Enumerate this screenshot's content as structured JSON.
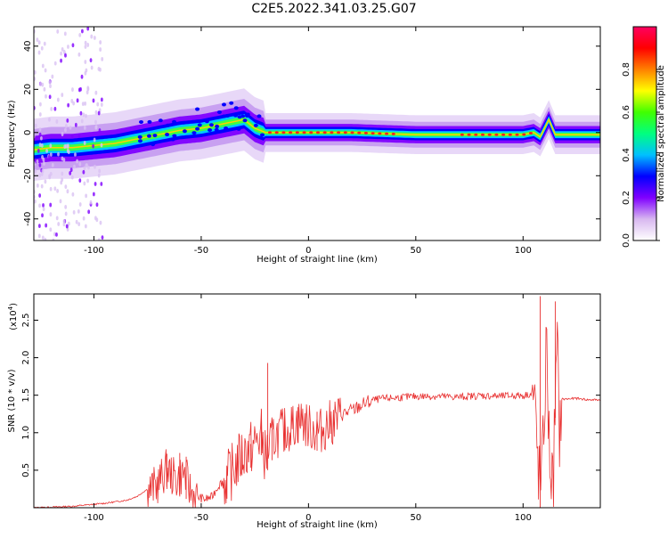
{
  "title": "C2E5.2022.341.03.25.G07",
  "chart_data": [
    {
      "type": "heatmap",
      "xlabel": "Height of straight line (km)",
      "ylabel": "Frequency (Hz)",
      "xlim": [
        -128,
        136
      ],
      "ylim": [
        -50,
        49
      ],
      "xticks": [
        -100,
        -50,
        0,
        50,
        100
      ],
      "yticks": [
        -40,
        -20,
        0,
        20,
        40
      ],
      "colorbar": {
        "label": "Normalized spectral amplitude",
        "range": [
          0.0,
          1.0
        ],
        "ticks": [
          "0.0",
          "0.2",
          "0.4",
          "0.6",
          "0.8"
        ],
        "tick_values": [
          0.0,
          0.2,
          0.4,
          0.6,
          0.8
        ],
        "colors": [
          "#ffffff",
          "#d8b8f0",
          "#8000ff",
          "#0000ff",
          "#00c0ff",
          "#00ff80",
          "#40ff00",
          "#ffff00",
          "#ff8000",
          "#ff0000",
          "#ff0060"
        ]
      },
      "ridge": {
        "x": [
          -128,
          -120,
          -110,
          -100,
          -90,
          -80,
          -70,
          -60,
          -50,
          -40,
          -30,
          -25,
          -20,
          -10,
          0,
          20,
          50,
          80,
          100,
          105,
          108,
          110,
          112,
          115,
          136
        ],
        "y": [
          -8,
          -7,
          -7,
          -6,
          -5,
          -3,
          -1,
          1,
          2,
          4,
          6,
          2,
          0,
          0,
          0,
          0,
          -1,
          -1,
          -1,
          0,
          -2,
          2,
          6,
          -1,
          -1
        ]
      }
    },
    {
      "type": "line",
      "xlabel": "Height of straight line (km)",
      "ylabel": "SNR (10 * v/v)",
      "multiplier": "(x10",
      "multiplier_exp": "4",
      "multiplier_close": ")",
      "xlim": [
        -128,
        136
      ],
      "ylim": [
        0,
        2.85
      ],
      "xticks": [
        -100,
        -50,
        0,
        50,
        100
      ],
      "yticks": [
        "0.5",
        "1.0",
        "1.5",
        "2.0",
        "2.5"
      ],
      "ytick_values": [
        0.5,
        1.0,
        1.5,
        2.0,
        2.5
      ],
      "color": "#e83030",
      "series": [
        {
          "x": [
            -128,
            -110,
            -95,
            -85,
            -80,
            -75,
            -70,
            -66,
            -62,
            -58,
            -55,
            -52,
            -48,
            -45,
            -42,
            -38,
            -35,
            -32,
            -29,
            -26,
            -22,
            -20,
            -18,
            -15,
            -12,
            -9,
            -6,
            -3,
            0,
            5,
            10,
            15,
            20,
            25,
            30,
            35,
            40,
            45,
            50,
            60,
            70,
            80,
            90,
            95,
            100,
            103,
            105,
            106,
            107,
            108,
            109,
            110,
            111,
            112,
            113,
            114,
            115,
            116,
            117,
            118,
            120,
            125,
            130,
            136
          ],
          "y": [
            0.0,
            0.02,
            0.06,
            0.1,
            0.15,
            0.25,
            0.35,
            0.55,
            0.4,
            0.5,
            0.25,
            0.15,
            0.12,
            0.15,
            0.3,
            0.42,
            0.55,
            0.7,
            0.8,
            0.85,
            1.0,
            0.7,
            0.9,
            1.0,
            1.05,
            1.1,
            1.15,
            1.2,
            1.1,
            1.05,
            1.15,
            1.25,
            1.3,
            1.38,
            1.44,
            1.46,
            1.47,
            1.48,
            1.49,
            1.49,
            1.48,
            1.5,
            1.49,
            1.5,
            1.5,
            1.52,
            1.5,
            1.2,
            0.6,
            0.3,
            0.6,
            1.4,
            2.3,
            1.0,
            0.5,
            0.3,
            1.5,
            2.2,
            1.0,
            1.45,
            1.45,
            1.46,
            1.44,
            1.44
          ]
        }
      ],
      "spikes": [
        {
          "x": -66,
          "y": 0.72
        },
        {
          "x": -60,
          "y": 0.73
        },
        {
          "x": -57,
          "y": 0.68
        },
        {
          "x": -38,
          "y": 0.55
        },
        {
          "x": -31,
          "y": 0.75
        },
        {
          "x": -27,
          "y": 0.85
        },
        {
          "x": -22,
          "y": 1.32
        },
        {
          "x": -19,
          "y": 1.93
        },
        {
          "x": -17,
          "y": 1.05
        },
        {
          "x": -11,
          "y": 1.15
        },
        {
          "x": -5,
          "y": 1.34
        },
        {
          "x": 4,
          "y": 1.28
        },
        {
          "x": 108,
          "y": 2.82
        },
        {
          "x": 115,
          "y": 2.75
        }
      ]
    }
  ]
}
